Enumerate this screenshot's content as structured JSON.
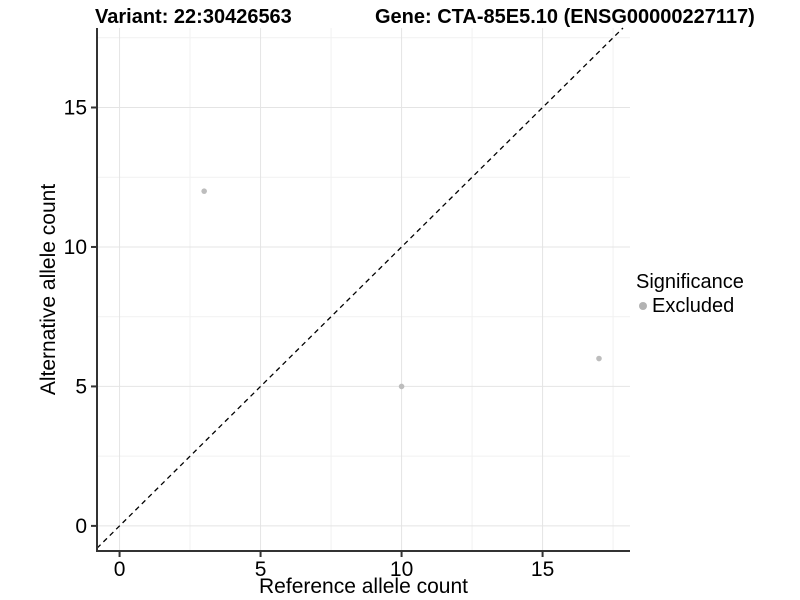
{
  "chart_data": {
    "type": "scatter",
    "titles": {
      "variant": "Variant: 22:30426563",
      "gene": "Gene: CTA-85E5.10 (ENSG00000227117)"
    },
    "xlabel": "Reference allele count",
    "ylabel": "Alternative allele count",
    "x_ticks": [
      0,
      5,
      10,
      15
    ],
    "y_ticks": [
      0,
      5,
      10,
      15
    ],
    "x_minor_gridlines": [
      2.5,
      7.5,
      12.5,
      17.5
    ],
    "y_minor_gridlines": [
      2.5,
      7.5,
      12.5,
      17.5
    ],
    "xlim": [
      -0.8,
      18.1
    ],
    "ylim": [
      -0.9,
      17.85
    ],
    "grid": "major+minor",
    "series": [
      {
        "name": "Excluded",
        "color": "#bdbdbd",
        "points": [
          {
            "x": 3,
            "y": 12
          },
          {
            "x": 10,
            "y": 5
          },
          {
            "x": 17,
            "y": 6
          }
        ]
      }
    ],
    "reference_line": {
      "type": "identity",
      "slope": 1,
      "intercept": 0,
      "style": "dashed",
      "color": "#000000"
    },
    "legend": {
      "position": "right",
      "title": "Significance",
      "entries": [
        {
          "label": "Excluded",
          "color": "#b3b3b3"
        }
      ]
    },
    "colors": {
      "grid_major": "#e4e4e4",
      "grid_minor": "#f1f1f1",
      "axis_line": "#333333",
      "tick_text": "#000000",
      "point": "#bdbdbd"
    }
  }
}
